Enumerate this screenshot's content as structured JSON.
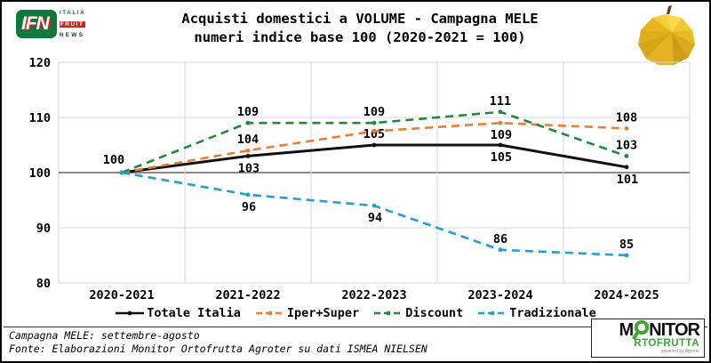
{
  "header": {
    "logo_ifn": {
      "acronym": "IFN",
      "line1": "ITALIA",
      "line2": "FRUIT",
      "line3": "NEWS"
    },
    "title_line1": "Acquisti domestici a VOLUME - Campagna MELE",
    "title_line2": "numeri indice base 100 (2020-2021 = 100)"
  },
  "chart_data": {
    "type": "line",
    "title": "Acquisti domestici a VOLUME - Campagna MELE",
    "subtitle": "numeri indice base 100 (2020-2021 = 100)",
    "categories": [
      "2020-2021",
      "2021-2022",
      "2022-2023",
      "2023-2024",
      "2024-2025"
    ],
    "ylim": [
      80,
      120
    ],
    "yticks": [
      80,
      90,
      100,
      110,
      120
    ],
    "baseline": 100,
    "grid": true,
    "legend_position": "bottom",
    "colors": {
      "grid": "#d9d9d9",
      "baseline": "#7a7a7a"
    },
    "series": [
      {
        "name": "Totale Italia",
        "color": "#111111",
        "style": "solid",
        "values": [
          100,
          103,
          105,
          105,
          101
        ],
        "point_labels": [
          "100",
          "103",
          "105",
          "105",
          "101"
        ],
        "label_pos": [
          "above-left",
          "below",
          "above",
          "below",
          "below"
        ]
      },
      {
        "name": "Iper+Super",
        "color": "#ed7d31",
        "style": "dashed",
        "values": [
          100,
          104,
          107.5,
          109,
          108
        ],
        "point_labels": [
          null,
          "104",
          null,
          "109",
          "108"
        ],
        "label_pos": [
          null,
          "above",
          null,
          "below",
          "above"
        ]
      },
      {
        "name": "Discount",
        "color": "#1e8a3c",
        "style": "dashed",
        "values": [
          100,
          109,
          109,
          111,
          103
        ],
        "point_labels": [
          null,
          "109",
          "109",
          "111",
          "103"
        ],
        "label_pos": [
          null,
          "above",
          "above",
          "above",
          "above"
        ]
      },
      {
        "name": "Tradizionale",
        "color": "#219fd9",
        "style": "dashed",
        "values": [
          100,
          96,
          94,
          86,
          85
        ],
        "point_labels": [
          null,
          "96",
          "94",
          "86",
          "85"
        ],
        "label_pos": [
          null,
          "below",
          "below",
          "above",
          "above"
        ]
      }
    ]
  },
  "footer": {
    "line1": "Campagna MELE: settembre-agosto",
    "line2": "Fonte: Elaborazioni Monitor Ortofrutta Agroter su dati ISMEA NIELSEN"
  },
  "logo_monitor": {
    "part1": "M",
    "part2": "NITOR",
    "row2": "RTOFRUTTA",
    "powered": "powered by Agroter"
  }
}
